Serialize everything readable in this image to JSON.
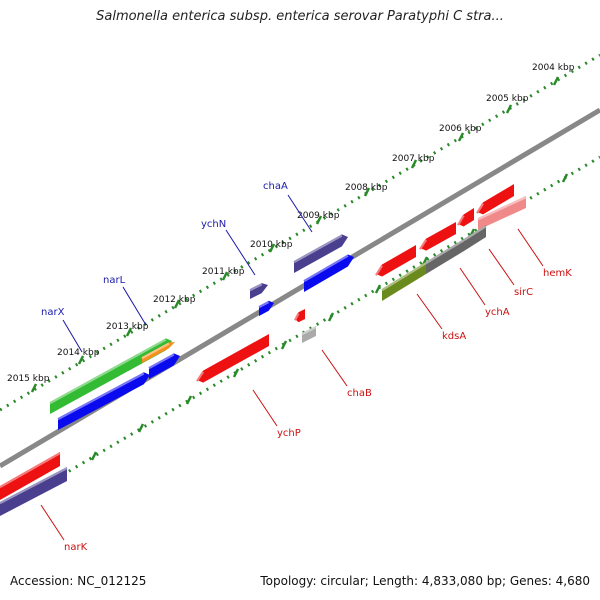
{
  "title": "Salmonella enterica subsp. enterica serovar Paratyphi C stra...",
  "footer": {
    "accession": "Accession: NC_012125",
    "summary": "Topology: circular; Length: 4,833,080 bp; Genes: 4,680"
  },
  "colors": {
    "backbone": "#888888",
    "tick": "#2a8a2a",
    "forward_label": "#1a1aaa",
    "reverse_label": "#cc1111",
    "tick_text": "#111111"
  },
  "scale": {
    "ticks": [
      {
        "label": "2004 kbp"
      },
      {
        "label": "2005 kbp"
      },
      {
        "label": "2006 kbp"
      },
      {
        "label": "2007 kbp"
      },
      {
        "label": "2008 kbp"
      },
      {
        "label": "2009 kbp"
      },
      {
        "label": "2010 kbp"
      },
      {
        "label": "2011 kbp"
      },
      {
        "label": "2012 kbp"
      },
      {
        "label": "2013 kbp"
      },
      {
        "label": "2014 kbp"
      },
      {
        "label": "2015 kbp"
      }
    ]
  },
  "forward_labels": [
    {
      "name": "chaA"
    },
    {
      "name": "ychN"
    },
    {
      "name": "narL"
    },
    {
      "name": "narX"
    }
  ],
  "reverse_labels": [
    {
      "name": "hemK"
    },
    {
      "name": "sirC"
    },
    {
      "name": "ychA"
    },
    {
      "name": "kdsA"
    },
    {
      "name": "chaB"
    },
    {
      "name": "ychP"
    },
    {
      "name": "narK"
    }
  ],
  "features": [
    {
      "track": "forward",
      "color": "#4a3f8f"
    },
    {
      "track": "forward",
      "color": "#0a0aee"
    },
    {
      "track": "forward",
      "color": "#4a3f8f"
    },
    {
      "track": "forward",
      "color": "#0a0aee"
    },
    {
      "track": "forward",
      "color": "#33bb33"
    },
    {
      "track": "forward",
      "color": "#f5901e"
    },
    {
      "track": "forward",
      "color": "#0a0aee"
    },
    {
      "track": "forward",
      "color": "#0a0aee"
    },
    {
      "track": "reverse",
      "color": "#ee1111"
    },
    {
      "track": "reverse",
      "color": "#ee1111"
    },
    {
      "track": "reverse",
      "color": "#ee1111"
    },
    {
      "track": "reverse",
      "color": "#ee1111"
    },
    {
      "track": "reverse",
      "color": "#f08a8a"
    },
    {
      "track": "reverse",
      "color": "#666666"
    },
    {
      "track": "reverse",
      "color": "#666666"
    },
    {
      "track": "reverse",
      "color": "#6a8a1e"
    },
    {
      "track": "reverse",
      "color": "#ee1111"
    },
    {
      "track": "reverse",
      "color": "#aaaaaa"
    },
    {
      "track": "reverse",
      "color": "#ee1111"
    },
    {
      "track": "reverse",
      "color": "#ee1111"
    },
    {
      "track": "reverse",
      "color": "#4a3f8f"
    }
  ]
}
